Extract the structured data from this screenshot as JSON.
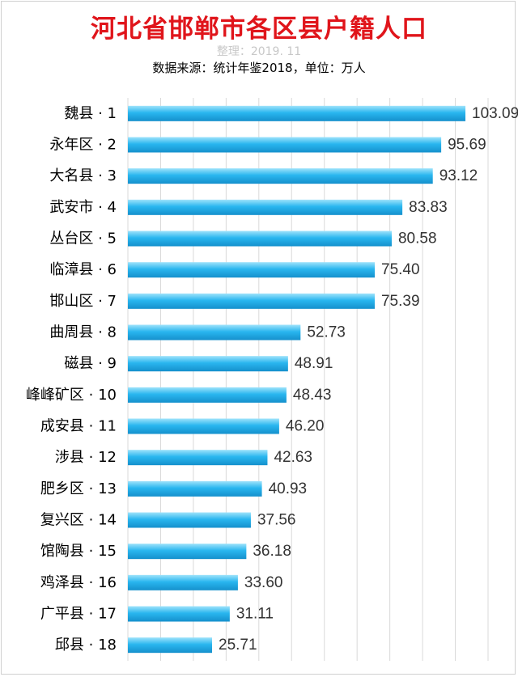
{
  "header": {
    "title": "河北省邯郸市各区县户籍人口",
    "subtitle_compiled": "整理：2019. 11",
    "subtitle_source": "数据来源：统计年鉴2018，单位：万人"
  },
  "colors": {
    "title": "#e0151b",
    "bar_top": "#9fe3fb",
    "bar_mid": "#29b6ef",
    "bar_bottom": "#1590cc",
    "gridline": "#d9d9d9"
  },
  "chart_data": {
    "type": "bar",
    "orientation": "horizontal",
    "title": "河北省邯郸市各区县户籍人口",
    "subtitle": "数据来源：统计年鉴2018，单位：万人",
    "xlabel": "",
    "ylabel": "",
    "xlim": [
      0,
      110
    ],
    "grid": true,
    "legend": "none",
    "categories": [
      "魏县 · 1",
      "永年区 · 2",
      "大名县 · 3",
      "武安市 · 4",
      "丛台区 · 5",
      "临漳县 · 6",
      "邯山区 · 7",
      "曲周县 · 8",
      "磁县 · 9",
      "峰峰矿区 · 10",
      "成安县 · 11",
      "涉县 · 12",
      "肥乡区 · 13",
      "复兴区 · 14",
      "馆陶县 · 15",
      "鸡泽县 · 16",
      "广平县 · 17",
      "邱县 · 18"
    ],
    "values": [
      103.09,
      95.69,
      93.12,
      83.83,
      80.58,
      75.4,
      75.39,
      52.73,
      48.91,
      48.43,
      46.2,
      42.63,
      40.93,
      37.56,
      36.18,
      33.6,
      31.11,
      25.71
    ],
    "value_labels": [
      "103.09",
      "95.69",
      "93.12",
      "83.83",
      "80.58",
      "75.40",
      "75.39",
      "52.73",
      "48.91",
      "48.43",
      "46.20",
      "42.63",
      "40.93",
      "37.56",
      "36.18",
      "33.60",
      "31.11",
      "25.71"
    ]
  }
}
